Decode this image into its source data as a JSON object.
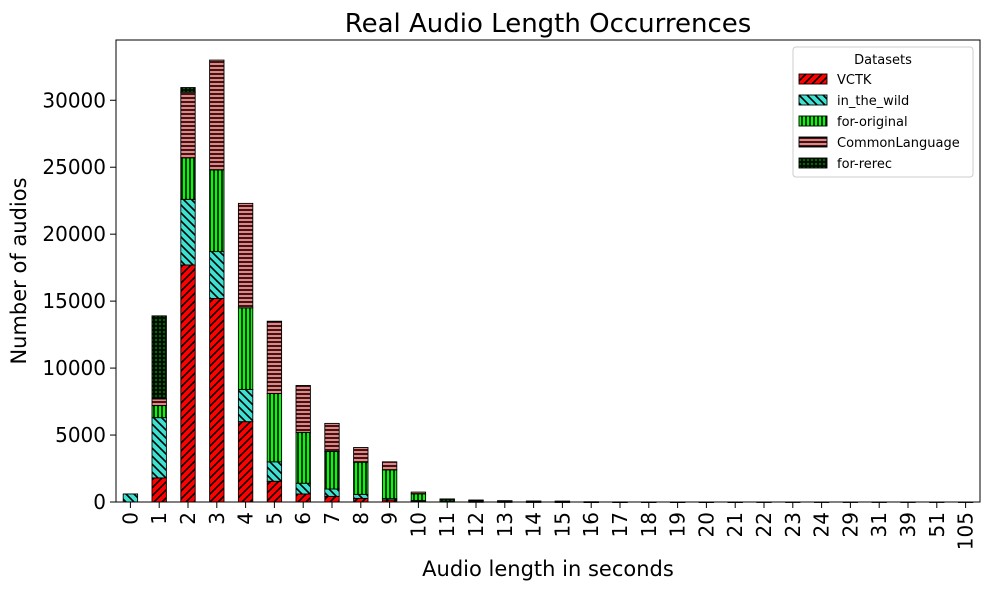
{
  "chart_data": {
    "type": "bar",
    "stacked": true,
    "title": "Real Audio Length Occurrences",
    "xlabel": "Audio length in seconds",
    "ylabel": "Number of audios",
    "categories": [
      "0",
      "1",
      "2",
      "3",
      "4",
      "5",
      "6",
      "7",
      "8",
      "9",
      "10",
      "11",
      "12",
      "13",
      "14",
      "15",
      "16",
      "17",
      "18",
      "19",
      "20",
      "21",
      "22",
      "23",
      "24",
      "29",
      "31",
      "39",
      "51",
      "105"
    ],
    "ylim": [
      0,
      34500
    ],
    "yticks": [
      0,
      5000,
      10000,
      15000,
      20000,
      25000,
      30000
    ],
    "legend": {
      "title": "Datasets",
      "position": "top-right"
    },
    "series": [
      {
        "name": "VCTK",
        "color": "#ff0000",
        "hatch": "diagonal",
        "values": [
          0,
          1800,
          17700,
          15200,
          6000,
          1550,
          600,
          420,
          270,
          150,
          60,
          30,
          15,
          8,
          5,
          3,
          2,
          1,
          1,
          1,
          1,
          1,
          0,
          0,
          0,
          0,
          0,
          0,
          0,
          0
        ]
      },
      {
        "name": "in_the_wild",
        "color": "#40e0d0",
        "hatch": "back-diagonal",
        "values": [
          600,
          4500,
          4900,
          3500,
          2400,
          1450,
          800,
          550,
          300,
          100,
          50,
          60,
          40,
          30,
          20,
          15,
          5,
          3,
          2,
          2,
          1,
          1,
          1,
          1,
          1,
          1,
          1,
          1,
          1,
          1
        ]
      },
      {
        "name": "for-original",
        "color": "#00ff00",
        "hatch": "vertical",
        "values": [
          0,
          900,
          3100,
          6100,
          6100,
          5100,
          3800,
          2800,
          2400,
          2150,
          500,
          120,
          80,
          50,
          40,
          40,
          5,
          3,
          2,
          1,
          0,
          0,
          0,
          0,
          0,
          0,
          0,
          0,
          0,
          0
        ]
      },
      {
        "name": "CommonLanguage",
        "color": "#f08080",
        "hatch": "horizontal",
        "values": [
          0,
          500,
          4900,
          8200,
          7800,
          5400,
          3500,
          2100,
          1100,
          600,
          130,
          20,
          10,
          5,
          3,
          2,
          1,
          0,
          0,
          0,
          0,
          0,
          0,
          0,
          0,
          0,
          0,
          0,
          0,
          0
        ]
      },
      {
        "name": "for-rerec",
        "color": "#006400",
        "hatch": "grid",
        "values": [
          0,
          6200,
          350,
          0,
          0,
          0,
          0,
          0,
          0,
          0,
          0,
          0,
          0,
          0,
          0,
          0,
          0,
          0,
          0,
          0,
          0,
          0,
          0,
          0,
          0,
          0,
          0,
          0,
          0,
          0
        ]
      }
    ]
  }
}
